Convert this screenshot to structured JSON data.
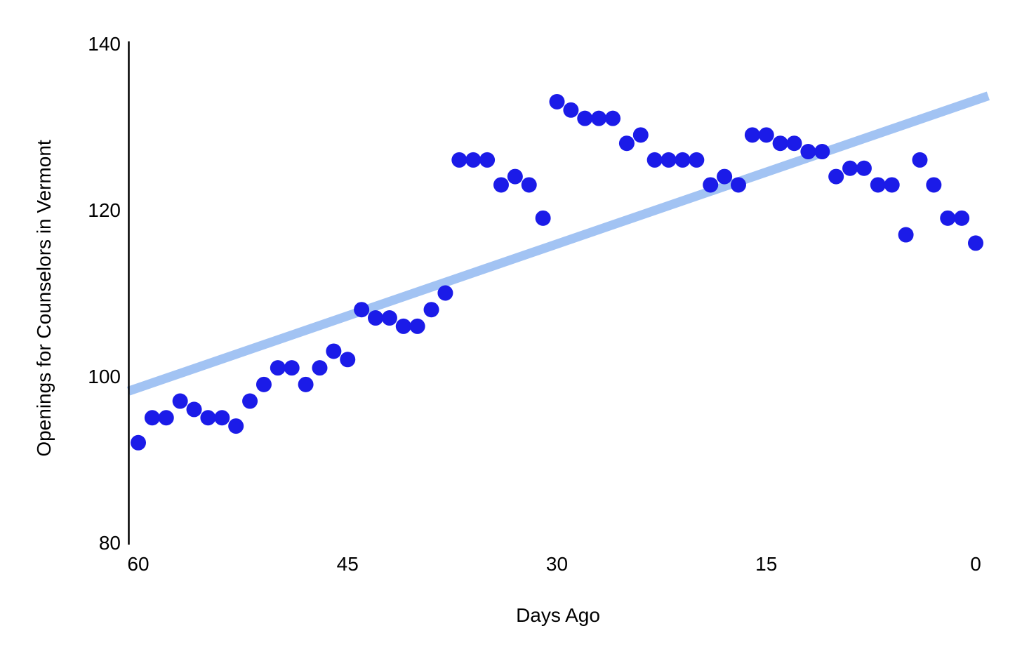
{
  "chart_data": {
    "type": "scatter",
    "title": "",
    "xlabel": "Days Ago",
    "ylabel": "Openings for Counselors in Vermont",
    "x_ticks": [
      "60",
      "45",
      "30",
      "15",
      "0"
    ],
    "x_tick_values": [
      60,
      45,
      30,
      15,
      0
    ],
    "y_ticks": [
      "140",
      "120",
      "100",
      "80"
    ],
    "y_tick_values": [
      140,
      120,
      100,
      80
    ],
    "xlim": [
      60,
      0
    ],
    "x_axis_reversed": true,
    "ylim": [
      80,
      140
    ],
    "grid": false,
    "legend": "none",
    "point_color": "#1b1be8",
    "trend_color": "#a2c3f3",
    "axis_color": "#000000",
    "points": [
      {
        "x": 60,
        "y": 92
      },
      {
        "x": 59,
        "y": 95
      },
      {
        "x": 58,
        "y": 95
      },
      {
        "x": 57,
        "y": 97
      },
      {
        "x": 56,
        "y": 96
      },
      {
        "x": 55,
        "y": 95
      },
      {
        "x": 54,
        "y": 95
      },
      {
        "x": 53,
        "y": 94
      },
      {
        "x": 52,
        "y": 97
      },
      {
        "x": 51,
        "y": 99
      },
      {
        "x": 50,
        "y": 101
      },
      {
        "x": 49,
        "y": 101
      },
      {
        "x": 48,
        "y": 99
      },
      {
        "x": 47,
        "y": 101
      },
      {
        "x": 46,
        "y": 103
      },
      {
        "x": 45,
        "y": 102
      },
      {
        "x": 44,
        "y": 108
      },
      {
        "x": 43,
        "y": 107
      },
      {
        "x": 42,
        "y": 107
      },
      {
        "x": 41,
        "y": 106
      },
      {
        "x": 40,
        "y": 106
      },
      {
        "x": 39,
        "y": 108
      },
      {
        "x": 38,
        "y": 110
      },
      {
        "x": 37,
        "y": 126
      },
      {
        "x": 36,
        "y": 126
      },
      {
        "x": 35,
        "y": 126
      },
      {
        "x": 34,
        "y": 123
      },
      {
        "x": 33,
        "y": 124
      },
      {
        "x": 32,
        "y": 123
      },
      {
        "x": 31,
        "y": 119
      },
      {
        "x": 30,
        "y": 133
      },
      {
        "x": 29,
        "y": 132
      },
      {
        "x": 28,
        "y": 131
      },
      {
        "x": 27,
        "y": 131
      },
      {
        "x": 26,
        "y": 131
      },
      {
        "x": 25,
        "y": 128
      },
      {
        "x": 24,
        "y": 129
      },
      {
        "x": 23,
        "y": 126
      },
      {
        "x": 22,
        "y": 126
      },
      {
        "x": 21,
        "y": 126
      },
      {
        "x": 20,
        "y": 126
      },
      {
        "x": 19,
        "y": 123
      },
      {
        "x": 18,
        "y": 124
      },
      {
        "x": 17,
        "y": 123
      },
      {
        "x": 16,
        "y": 129
      },
      {
        "x": 15,
        "y": 129
      },
      {
        "x": 14,
        "y": 128
      },
      {
        "x": 13,
        "y": 128
      },
      {
        "x": 12,
        "y": 127
      },
      {
        "x": 11,
        "y": 127
      },
      {
        "x": 10,
        "y": 124
      },
      {
        "x": 9,
        "y": 125
      },
      {
        "x": 8,
        "y": 125
      },
      {
        "x": 7,
        "y": 123
      },
      {
        "x": 6,
        "y": 123
      },
      {
        "x": 5,
        "y": 117
      },
      {
        "x": 4,
        "y": 126
      },
      {
        "x": 3,
        "y": 123
      },
      {
        "x": 2,
        "y": 119
      },
      {
        "x": 1,
        "y": 119
      },
      {
        "x": 0,
        "y": 116
      }
    ],
    "trendline": {
      "start": {
        "x": 60.7,
        "y": 98.2
      },
      "end": {
        "x": -0.9,
        "y": 133.7
      }
    }
  }
}
